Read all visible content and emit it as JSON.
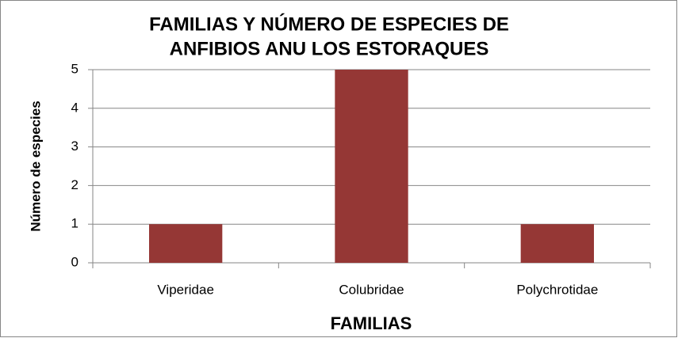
{
  "chart_data": {
    "type": "bar",
    "title": [
      "FAMILIAS Y NÚMERO DE ESPECIES DE",
      "ANFIBIOS ANU LOS ESTORAQUES"
    ],
    "x_label": "FAMILIAS",
    "y_label": "Número de especies",
    "categories": [
      "Viperidae",
      "Colubridae",
      "Polychrotidae"
    ],
    "values": [
      1,
      5,
      1
    ],
    "color": "#953735",
    "ylim": [
      0,
      5
    ],
    "yticks": [
      0,
      1,
      2,
      3,
      4,
      5
    ],
    "grid": true
  }
}
